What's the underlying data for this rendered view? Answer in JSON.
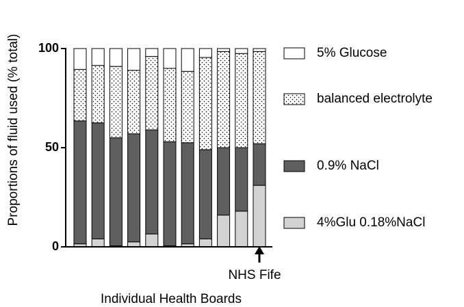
{
  "chart_data": {
    "type": "stacked_bar",
    "y_label": "Proportions of fluid used (% total)",
    "x_label": "Individual Health Boards",
    "annotation": "NHS Fife",
    "categories": [
      null,
      null,
      null,
      null,
      null,
      null,
      null,
      null,
      null,
      null,
      null
    ],
    "ylim": [
      0,
      100
    ],
    "yticks": [
      0,
      50,
      100
    ],
    "series": [
      {
        "name": "4%Glu 0.18%NaCl",
        "color": "#d3d3d3",
        "values": [
          1.5,
          4,
          0.5,
          2.5,
          6.5,
          0.5,
          1.5,
          4,
          16,
          18,
          31
        ]
      },
      {
        "name": "0.9% NaCl",
        "color": "#5f5f5f",
        "values": [
          62,
          58.5,
          54.5,
          54.5,
          52.5,
          52.5,
          51,
          45,
          34,
          32,
          21
        ]
      },
      {
        "name": "balanced electrolyte",
        "color": "#ffffff",
        "pattern": "dots",
        "values": [
          26,
          29,
          36,
          32,
          37,
          37,
          36,
          46.5,
          48.5,
          47.5,
          46.5
        ]
      },
      {
        "name": "5% Glucose",
        "color": "#ffffff",
        "values": [
          10.5,
          8.5,
          9,
          11,
          4,
          10,
          11.5,
          4.5,
          1.5,
          2.5,
          1.5
        ]
      }
    ]
  }
}
